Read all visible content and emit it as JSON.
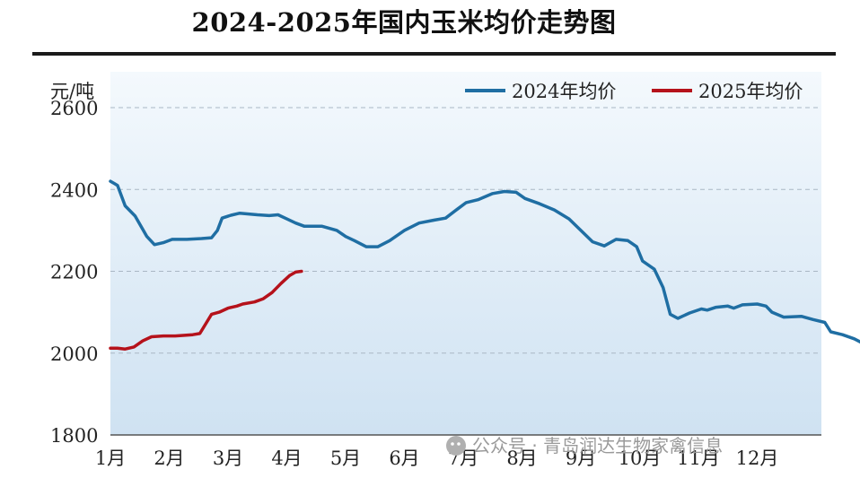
{
  "chart_data": {
    "type": "line",
    "title": "2024-2025年国内玉米均价走势图",
    "ylabel": "元/吨",
    "ylim": [
      1800,
      2600
    ],
    "yticks": [
      2600,
      2400,
      2200,
      2000,
      1800
    ],
    "categories": [
      "1月",
      "2月",
      "3月",
      "4月",
      "5月",
      "6月",
      "7月",
      "8月",
      "9月",
      "10月",
      "11月",
      "12月"
    ],
    "grid": "horizontal dashed",
    "legend_position": "top-right",
    "series": [
      {
        "name": "2024年均价",
        "color": "#1f6ea3",
        "points": [
          [
            0.0,
            2420
          ],
          [
            0.12,
            2410
          ],
          [
            0.25,
            2360
          ],
          [
            0.42,
            2335
          ],
          [
            0.62,
            2285
          ],
          [
            0.75,
            2265
          ],
          [
            0.9,
            2270
          ],
          [
            1.05,
            2278
          ],
          [
            1.3,
            2278
          ],
          [
            1.55,
            2280
          ],
          [
            1.72,
            2282
          ],
          [
            1.82,
            2300
          ],
          [
            1.9,
            2330
          ],
          [
            2.05,
            2337
          ],
          [
            2.2,
            2342
          ],
          [
            2.5,
            2338
          ],
          [
            2.7,
            2336
          ],
          [
            2.85,
            2338
          ],
          [
            3.0,
            2328
          ],
          [
            3.15,
            2318
          ],
          [
            3.3,
            2310
          ],
          [
            3.6,
            2310
          ],
          [
            3.85,
            2300
          ],
          [
            4.0,
            2285
          ],
          [
            4.15,
            2275
          ],
          [
            4.35,
            2260
          ],
          [
            4.55,
            2260
          ],
          [
            4.75,
            2275
          ],
          [
            5.0,
            2300
          ],
          [
            5.25,
            2318
          ],
          [
            5.5,
            2325
          ],
          [
            5.7,
            2330
          ],
          [
            5.9,
            2352
          ],
          [
            6.05,
            2368
          ],
          [
            6.25,
            2375
          ],
          [
            6.5,
            2390
          ],
          [
            6.7,
            2395
          ],
          [
            6.9,
            2393
          ],
          [
            7.05,
            2378
          ],
          [
            7.3,
            2365
          ],
          [
            7.55,
            2350
          ],
          [
            7.8,
            2328
          ],
          [
            8.0,
            2300
          ],
          [
            8.2,
            2272
          ],
          [
            8.4,
            2262
          ],
          [
            8.6,
            2278
          ],
          [
            8.8,
            2275
          ],
          [
            8.95,
            2260
          ],
          [
            9.05,
            2225
          ],
          [
            9.25,
            2205
          ],
          [
            9.4,
            2160
          ],
          [
            9.52,
            2095
          ],
          [
            9.65,
            2085
          ],
          [
            9.85,
            2098
          ],
          [
            10.05,
            2108
          ],
          [
            10.15,
            2105
          ],
          [
            10.3,
            2112
          ],
          [
            10.5,
            2115
          ],
          [
            10.6,
            2110
          ],
          [
            10.75,
            2118
          ],
          [
            11.0,
            2120
          ],
          [
            11.15,
            2115
          ],
          [
            11.25,
            2100
          ],
          [
            11.45,
            2088
          ],
          [
            11.75,
            2090
          ],
          [
            11.95,
            2082
          ],
          [
            12.15,
            2075
          ],
          [
            12.25,
            2052
          ],
          [
            12.45,
            2045
          ],
          [
            12.65,
            2035
          ],
          [
            12.85,
            2020
          ],
          [
            13.0,
            2012
          ],
          [
            13.2,
            2015
          ]
        ]
      },
      {
        "name": "2025年均价",
        "color": "#b5121b",
        "points": [
          [
            0.0,
            2012
          ],
          [
            0.12,
            2012
          ],
          [
            0.25,
            2010
          ],
          [
            0.4,
            2015
          ],
          [
            0.55,
            2030
          ],
          [
            0.7,
            2040
          ],
          [
            0.9,
            2042
          ],
          [
            1.1,
            2042
          ],
          [
            1.4,
            2045
          ],
          [
            1.52,
            2048
          ],
          [
            1.58,
            2062
          ],
          [
            1.72,
            2095
          ],
          [
            1.85,
            2100
          ],
          [
            2.0,
            2110
          ],
          [
            2.15,
            2115
          ],
          [
            2.25,
            2120
          ],
          [
            2.45,
            2125
          ],
          [
            2.6,
            2133
          ],
          [
            2.75,
            2148
          ],
          [
            2.9,
            2170
          ],
          [
            3.05,
            2190
          ],
          [
            3.15,
            2198
          ],
          [
            3.25,
            2200
          ]
        ]
      }
    ]
  },
  "watermark": "公众号 · 青岛润达生物家禽信息"
}
